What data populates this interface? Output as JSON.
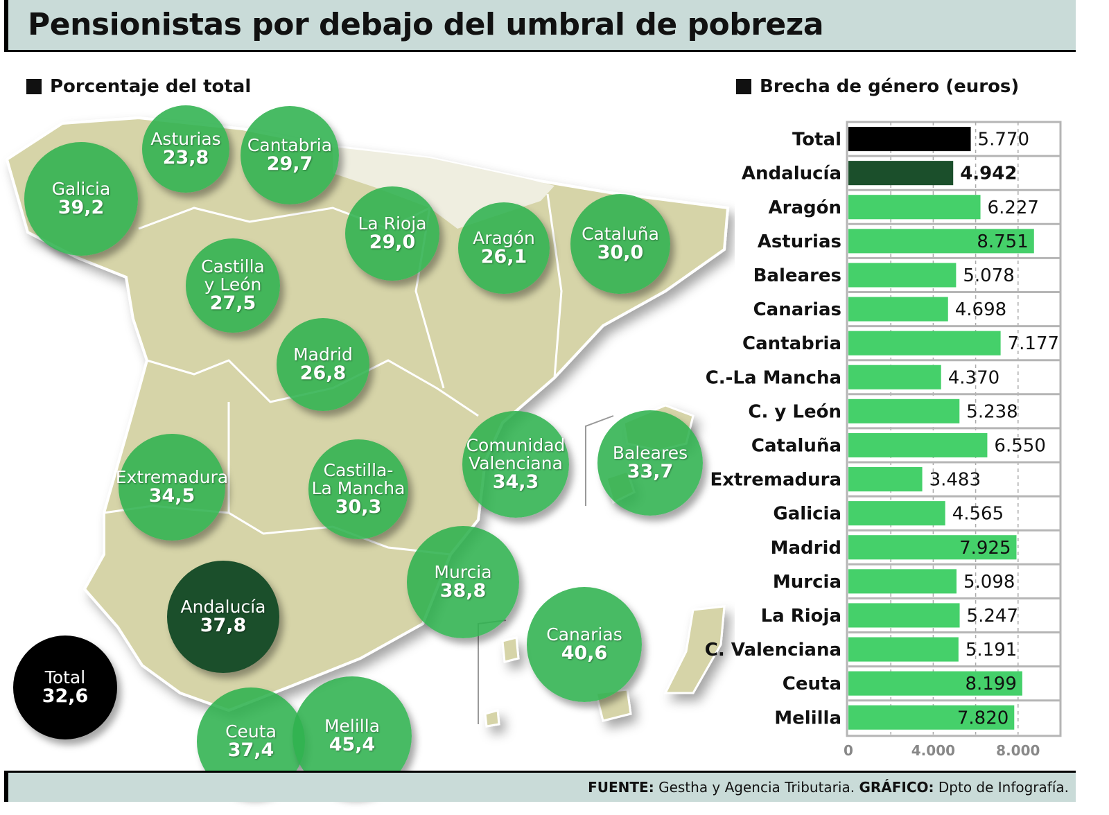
{
  "title": "Pensionistas por debajo del umbral de pobreza",
  "map_section": {
    "heading": "Porcentaje del total",
    "regions": [
      {
        "name": "Galicia",
        "value": "39,2"
      },
      {
        "name": "Asturias",
        "value": "23,8"
      },
      {
        "name": "Cantabria",
        "value": "29,7"
      },
      {
        "name": "La Rioja",
        "value": "29,0"
      },
      {
        "name": "Aragón",
        "value": "26,1"
      },
      {
        "name": "Cataluña",
        "value": "30,0"
      },
      {
        "name": "Castilla\ny León",
        "value": "27,5"
      },
      {
        "name": "Madrid",
        "value": "26,8"
      },
      {
        "name": "Extremadura",
        "value": "34,5"
      },
      {
        "name": "Castilla-\nLa Mancha",
        "value": "30,3"
      },
      {
        "name": "Comunidad\nValenciana",
        "value": "34,3"
      },
      {
        "name": "Baleares",
        "value": "33,7"
      },
      {
        "name": "Murcia",
        "value": "38,8"
      },
      {
        "name": "Andalucía",
        "value": "37,8"
      },
      {
        "name": "Canarias",
        "value": "40,6"
      },
      {
        "name": "Total",
        "value": "32,6"
      },
      {
        "name": "Ceuta",
        "value": "37,4"
      },
      {
        "name": "Melilla",
        "value": "45,4"
      }
    ],
    "colors": {
      "region": "#2fb24f",
      "andalucia": "#1b4f2b",
      "total": "#000000",
      "land": "#d6d4a8",
      "land_light": "#efeee0"
    }
  },
  "chart_data": {
    "type": "bar",
    "orientation": "horizontal",
    "title": "Brecha de género (euros)",
    "categories": [
      "Total",
      "Andalucía",
      "Aragón",
      "Asturias",
      "Baleares",
      "Canarias",
      "Cantabria",
      "C.-La Mancha",
      "C. y León",
      "Cataluña",
      "Extremadura",
      "Galicia",
      "Madrid",
      "Murcia",
      "La Rioja",
      "C. Valenciana",
      "Ceuta",
      "Melilla"
    ],
    "values": [
      5770,
      4942,
      6227,
      8751,
      5078,
      4698,
      7177,
      4370,
      5238,
      6550,
      3483,
      4565,
      7925,
      5098,
      5247,
      5191,
      8199,
      7820
    ],
    "value_labels": [
      "5.770",
      "4.942",
      "6.227",
      "8.751",
      "5.078",
      "4.698",
      "7.177",
      "4.370",
      "5.238",
      "6.550",
      "3.483",
      "4.565",
      "7.925",
      "5.098",
      "5.247",
      "5.191",
      "8.199",
      "7.820"
    ],
    "xticks": [
      0,
      4000,
      8000
    ],
    "xtick_labels": [
      "0",
      "4.000",
      "8.000"
    ],
    "xlim": [
      0,
      10000
    ],
    "grid": true,
    "colors": {
      "Total": "#000000",
      "Andalucía": "#1b4f2b",
      "default": "#45d06a"
    }
  },
  "footer": {
    "source_label": "FUENTE:",
    "source": "Gestha y Agencia Tributaria.",
    "graphic_label": "GRÁFICO:",
    "graphic": "Dpto de Infografía."
  }
}
